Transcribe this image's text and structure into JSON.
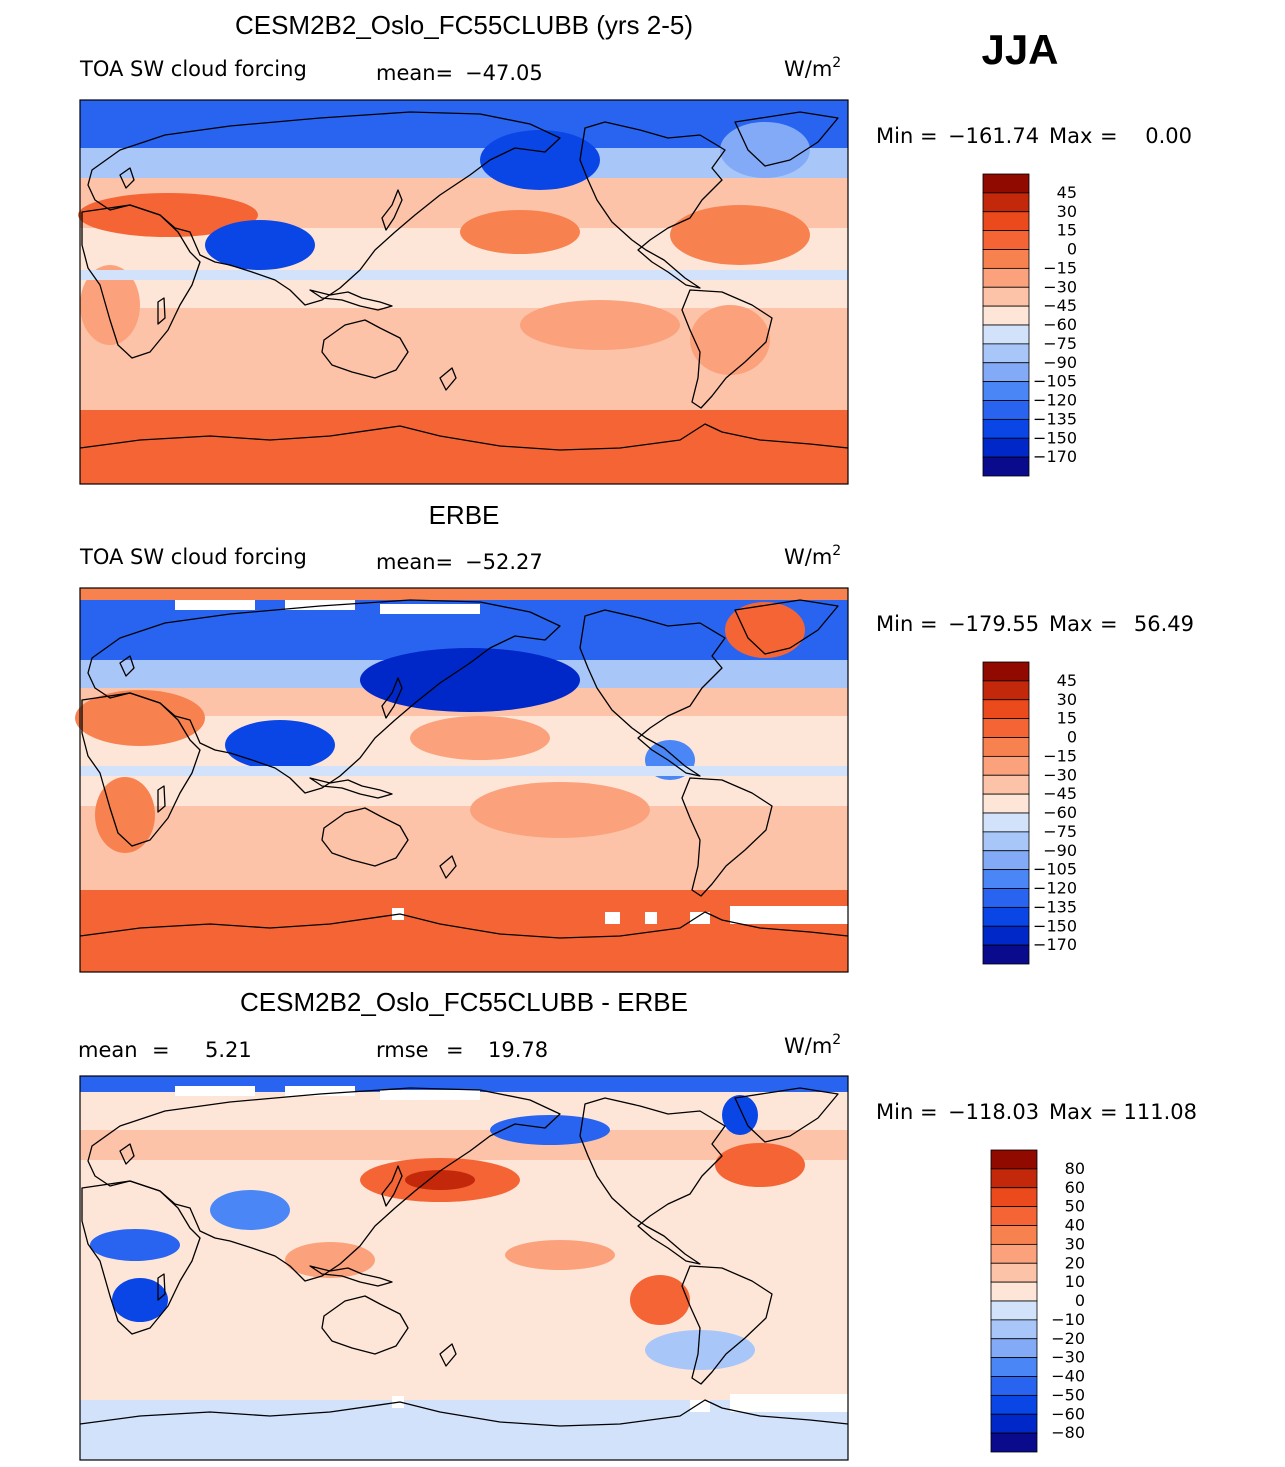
{
  "season": "JJA",
  "colors": {
    "neg": [
      "#0a0a8c",
      "#0028c8",
      "#0a46e6",
      "#2864f0",
      "#4a86f5",
      "#82aaf7",
      "#a8c6f8",
      "#d2e2fb"
    ],
    "pos": [
      "#fde6d8",
      "#fcc3a8",
      "#fba27c",
      "#f7824f",
      "#f56434",
      "#ea4a1c",
      "#c4280a",
      "#900a00"
    ],
    "white": "#ffffff",
    "frame": "#000000"
  },
  "chart_data": [
    {
      "type": "heatmap",
      "title": "CESM2B2_Oslo_FC55CLUBB (yrs 2-5)",
      "left_label": "TOA SW cloud forcing",
      "stat_label": "mean=",
      "stat_value": "−47.05",
      "units_base": "W/m",
      "units_exp": "2",
      "min_label": "Min",
      "eq": "=",
      "min_value": "−161.74",
      "max_label": "Max",
      "max_value": "0.00",
      "levels": [
        "45",
        "30",
        "15",
        "0",
        "−15",
        "−30",
        "−45",
        "−60",
        "−75",
        "−90",
        "−105",
        "−120",
        "−135",
        "−150",
        "−170"
      ]
    },
    {
      "type": "heatmap",
      "title": "ERBE",
      "left_label": "TOA SW cloud forcing",
      "stat_label": "mean=",
      "stat_value": "−52.27",
      "units_base": "W/m",
      "units_exp": "2",
      "min_label": "Min",
      "eq": "=",
      "min_value": "−179.55",
      "max_label": "Max",
      "max_value": "56.49",
      "levels": [
        "45",
        "30",
        "15",
        "0",
        "−15",
        "−30",
        "−45",
        "−60",
        "−75",
        "−90",
        "−105",
        "−120",
        "−135",
        "−150",
        "−170"
      ]
    },
    {
      "type": "heatmap",
      "title": "CESM2B2_Oslo_FC55CLUBB - ERBE",
      "mean_label": "mean",
      "eq": "=",
      "mean_value": "5.21",
      "rmse_label": "rmse",
      "rmse_value": "19.78",
      "units_base": "W/m",
      "units_exp": "2",
      "min_label": "Min",
      "min_value": "−118.03",
      "max_label": "Max",
      "max_value": "111.08",
      "levels": [
        "80",
        "60",
        "50",
        "40",
        "30",
        "20",
        "10",
        "0",
        "−10",
        "−20",
        "−30",
        "−40",
        "−50",
        "−60",
        "−80"
      ]
    }
  ]
}
